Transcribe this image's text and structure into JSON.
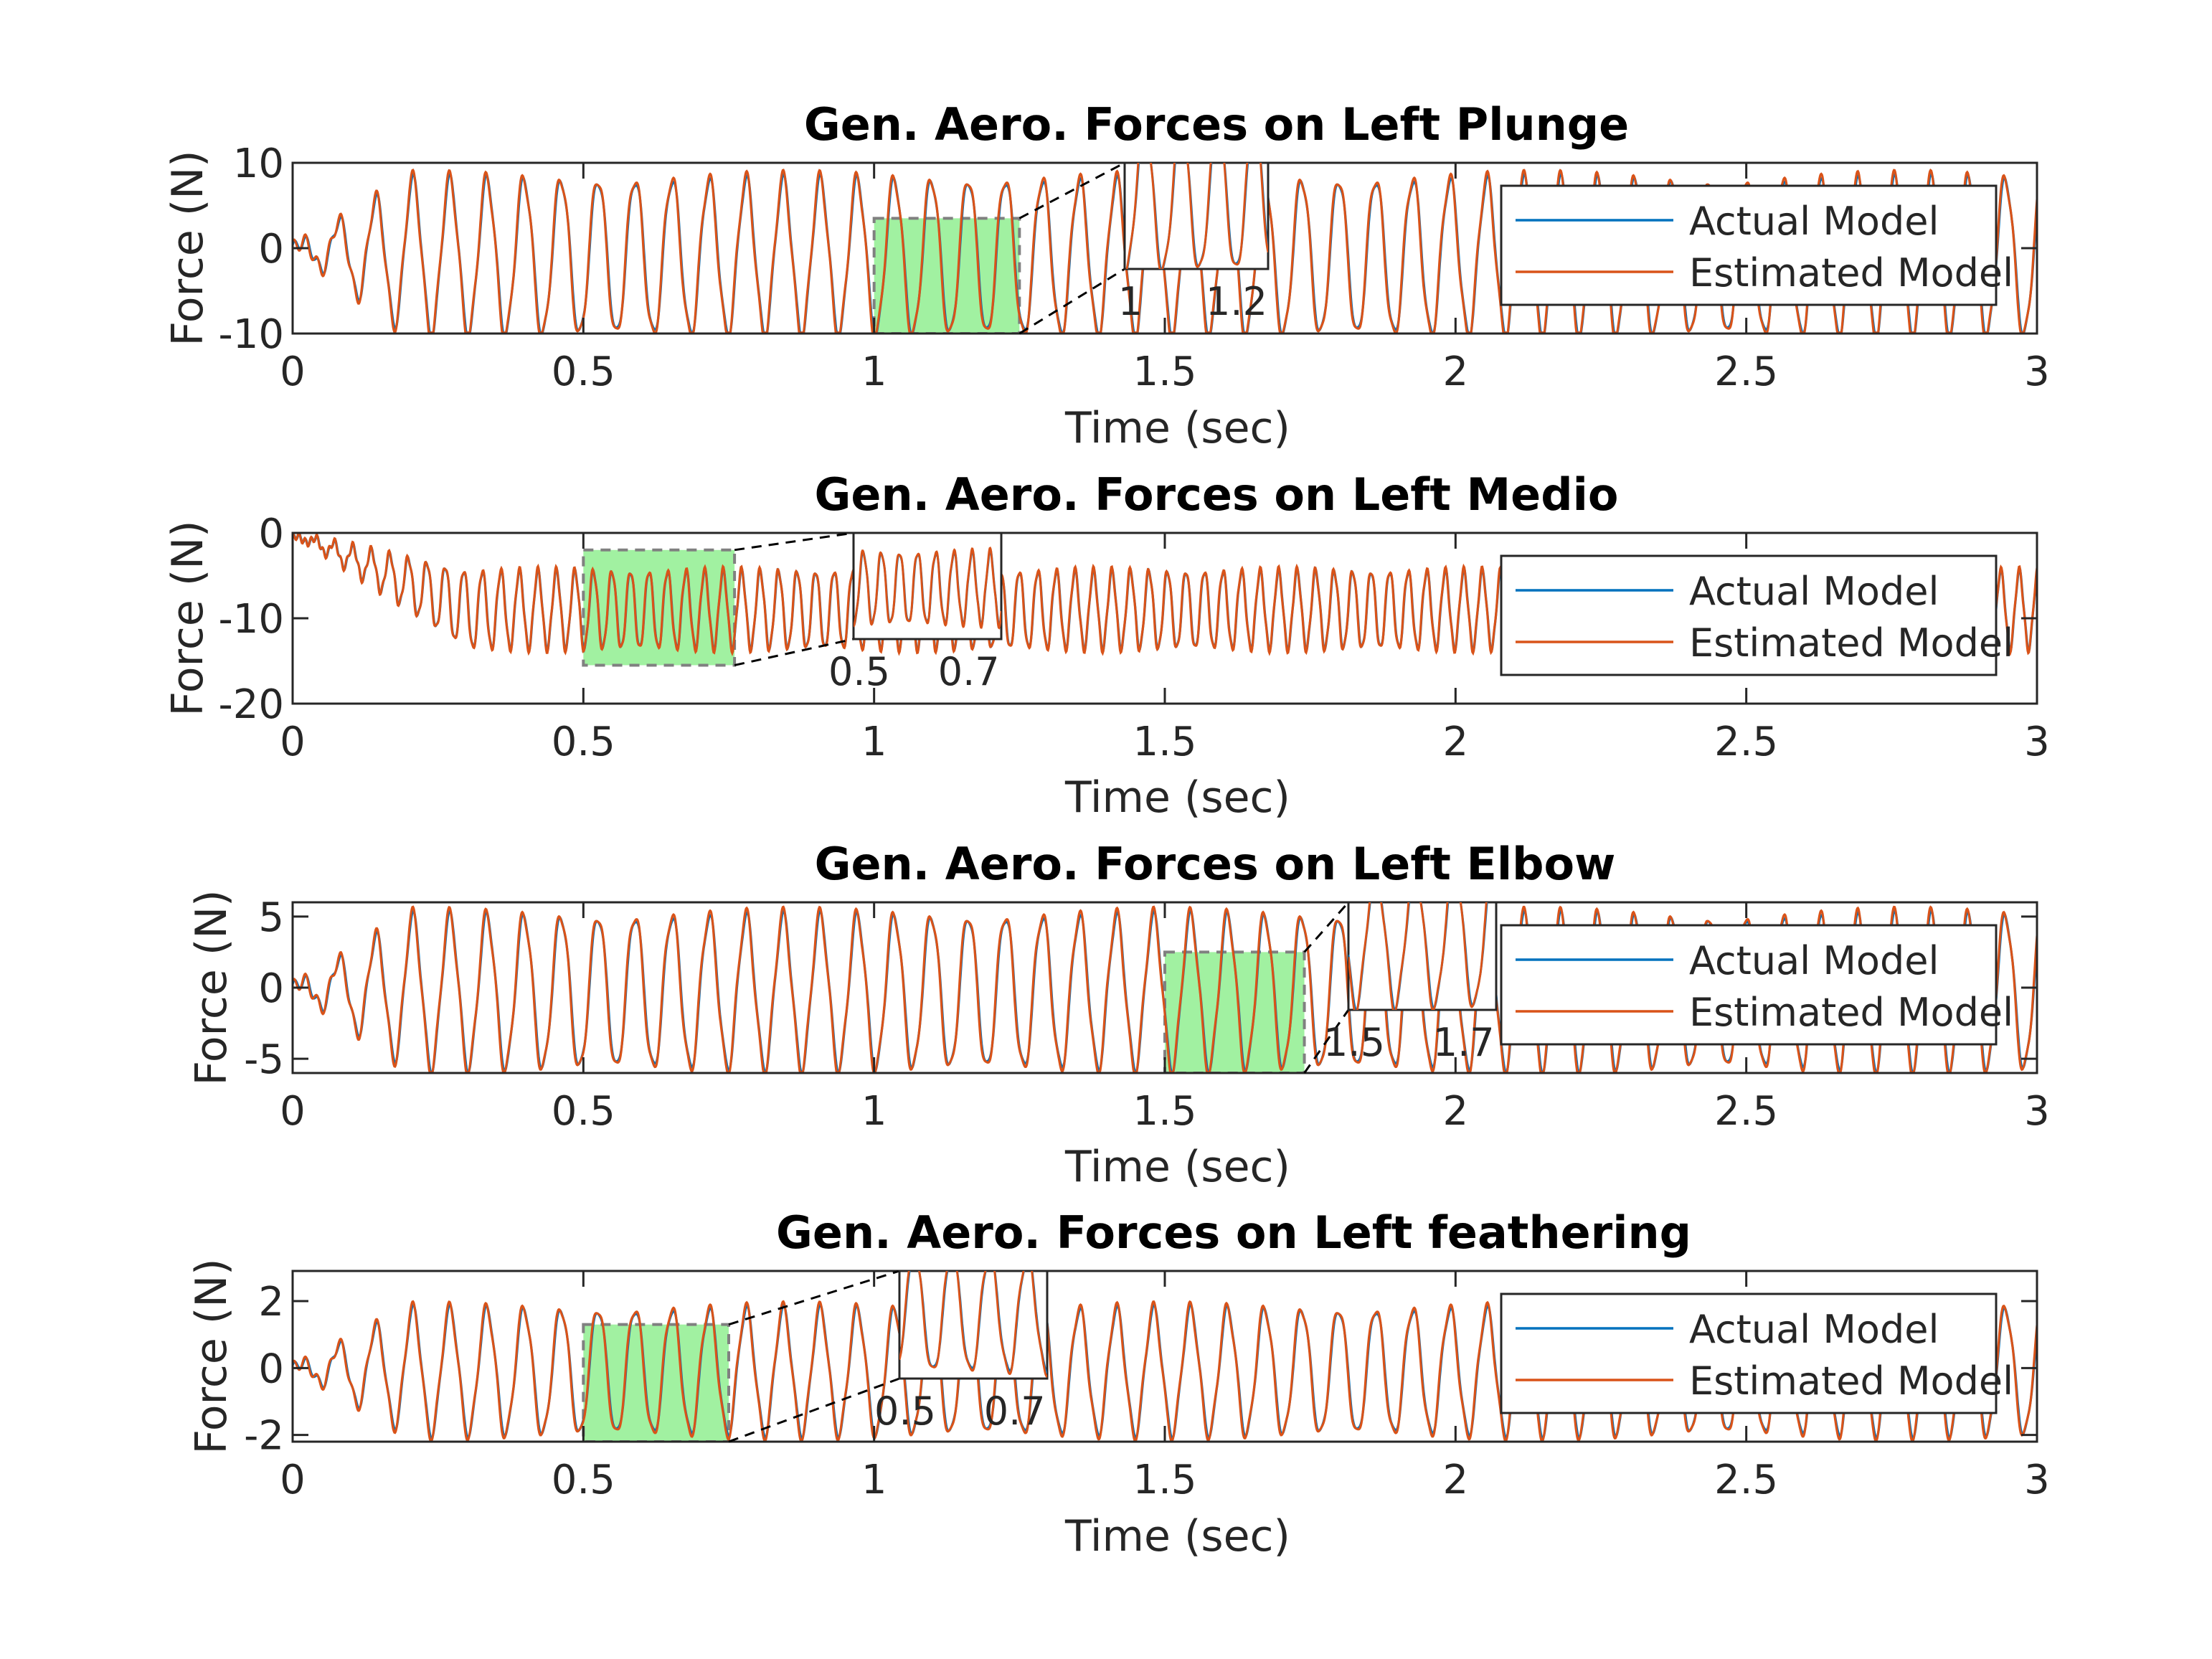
{
  "colors": {
    "actual": "#0072BD",
    "estimated": "#D95319",
    "highlight": "#90EE90",
    "axis": "#262626"
  },
  "chart_data": [
    {
      "type": "line",
      "title": "Gen. Aero. Forces on Left Plunge",
      "xlabel": "Time (sec)",
      "ylabel": "Force (N)",
      "xlim": [
        0,
        3
      ],
      "ylim": [
        -10,
        10
      ],
      "xticks": [
        "0",
        "0.5",
        "1",
        "1.5",
        "2",
        "2.5",
        "3"
      ],
      "yticks": [
        "-10",
        "0",
        "10"
      ],
      "legend": [
        "Actual Model",
        "Estimated Model"
      ],
      "legend_position": "right",
      "signal": {
        "amplitude": 9,
        "offset": -1,
        "frequency_hz": 15.7,
        "transient_end": 0.2
      },
      "highlight": {
        "x": [
          1.0,
          1.25
        ],
        "y": [
          -10,
          3.5
        ]
      },
      "inset": {
        "xticks": [
          "1",
          "1.2"
        ]
      }
    },
    {
      "type": "line",
      "title": "Gen. Aero. Forces on Left Medio",
      "xlabel": "Time (sec)",
      "ylabel": "Force (N)",
      "xlim": [
        0,
        3
      ],
      "ylim": [
        -20,
        0
      ],
      "xticks": [
        "0",
        "0.5",
        "1",
        "1.5",
        "2",
        "2.5",
        "3"
      ],
      "yticks": [
        "0",
        "-10",
        "-20"
      ],
      "legend": [
        "Actual Model",
        "Estimated Model"
      ],
      "legend_position": "right",
      "signal": {
        "amplitude": 4.5,
        "offset": -9,
        "frequency_hz": 31.4,
        "transient_end": 0.3
      },
      "highlight": {
        "x": [
          0.5,
          0.76
        ],
        "y": [
          -15.5,
          -2
        ]
      },
      "inset": {
        "xticks": [
          "0.5",
          "0.7"
        ]
      }
    },
    {
      "type": "line",
      "title": "Gen. Aero. Forces on Left Elbow",
      "xlabel": "Time (sec)",
      "ylabel": "Force (N)",
      "xlim": [
        0,
        3
      ],
      "ylim": [
        -6,
        6
      ],
      "xticks": [
        "0",
        "0.5",
        "1",
        "1.5",
        "2",
        "2.5",
        "3"
      ],
      "yticks": [
        "5",
        "0",
        "-5"
      ],
      "legend": [
        "Actual Model",
        "Estimated Model"
      ],
      "legend_position": "right",
      "signal": {
        "amplitude": 5.3,
        "offset": -0.3,
        "frequency_hz": 15.7,
        "transient_end": 0.2
      },
      "highlight": {
        "x": [
          1.5,
          1.74
        ],
        "y": [
          -6,
          2.5
        ]
      },
      "inset": {
        "xticks": [
          "1.5",
          "1.7"
        ]
      }
    },
    {
      "type": "line",
      "title": "Gen. Aero. Forces on Left feathering",
      "xlabel": "Time (sec)",
      "ylabel": "Force (N)",
      "xlim": [
        0,
        3
      ],
      "ylim": [
        -2.2,
        2.9
      ],
      "xticks": [
        "0",
        "0.5",
        "1",
        "1.5",
        "2",
        "2.5",
        "3"
      ],
      "yticks": [
        "2",
        "0",
        "-2"
      ],
      "legend": [
        "Actual Model",
        "Estimated Model"
      ],
      "legend_position": "right",
      "signal": {
        "amplitude": 1.85,
        "offset": -0.1,
        "frequency_hz": 15.7,
        "transient_end": 0.2
      },
      "highlight": {
        "x": [
          0.5,
          0.75
        ],
        "y": [
          -2.2,
          1.3
        ]
      },
      "inset": {
        "xticks": [
          "0.5",
          "0.7"
        ]
      }
    }
  ]
}
